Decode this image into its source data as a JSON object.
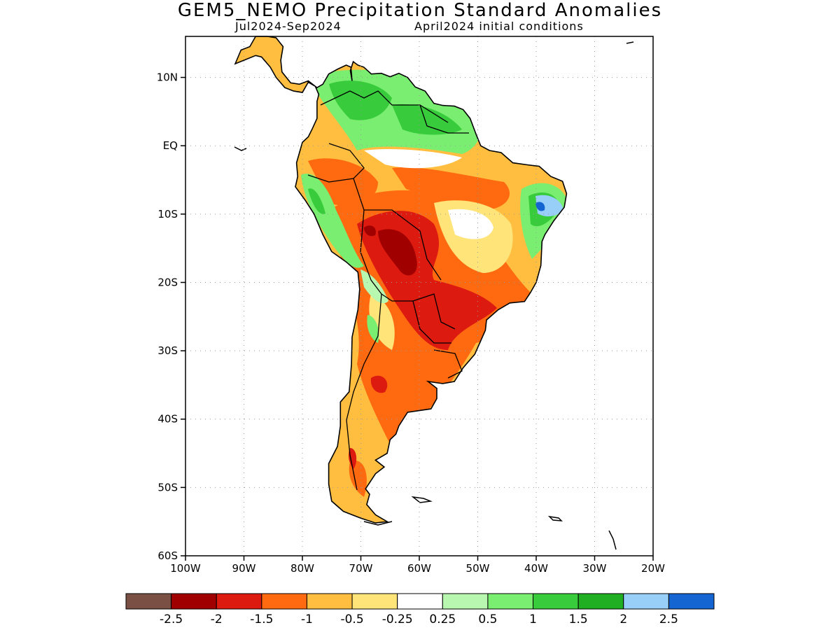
{
  "header": {
    "title": "GEM5_NEMO Precipitation Standard Anomalies",
    "period": "Jul2024-Sep2024",
    "initial_conditions": "April2024 initial conditions"
  },
  "map": {
    "lon_range": [
      -100,
      -20
    ],
    "lat_range": [
      -60,
      16
    ],
    "lon_ticks": [
      {
        "value": -100,
        "label": "100W"
      },
      {
        "value": -90,
        "label": "90W"
      },
      {
        "value": -80,
        "label": "80W"
      },
      {
        "value": -70,
        "label": "70W"
      },
      {
        "value": -60,
        "label": "60W"
      },
      {
        "value": -50,
        "label": "50W"
      },
      {
        "value": -40,
        "label": "40W"
      },
      {
        "value": -30,
        "label": "30W"
      },
      {
        "value": -20,
        "label": "20W"
      }
    ],
    "lat_ticks": [
      {
        "value": 10,
        "label": "10N"
      },
      {
        "value": 0,
        "label": "EQ"
      },
      {
        "value": -10,
        "label": "10S"
      },
      {
        "value": -20,
        "label": "20S"
      },
      {
        "value": -30,
        "label": "30S"
      },
      {
        "value": -40,
        "label": "40S"
      },
      {
        "value": -50,
        "label": "50S"
      },
      {
        "value": -60,
        "label": "60S"
      }
    ],
    "grid": "dotted"
  },
  "colorbar": {
    "colors": [
      "#7a5045",
      "#a00000",
      "#dd1a10",
      "#ff6a10",
      "#ffbe40",
      "#ffe47a",
      "#ffffff",
      "#b8f7b0",
      "#7aee70",
      "#38cc3c",
      "#20ae22",
      "#98cff8",
      "#1464d2"
    ],
    "labels": [
      "-2.5",
      "-2",
      "-1.5",
      "-1",
      "-0.5",
      "-0.25",
      "0.25",
      "0.5",
      "1",
      "1.5",
      "2",
      "2.5"
    ]
  }
}
